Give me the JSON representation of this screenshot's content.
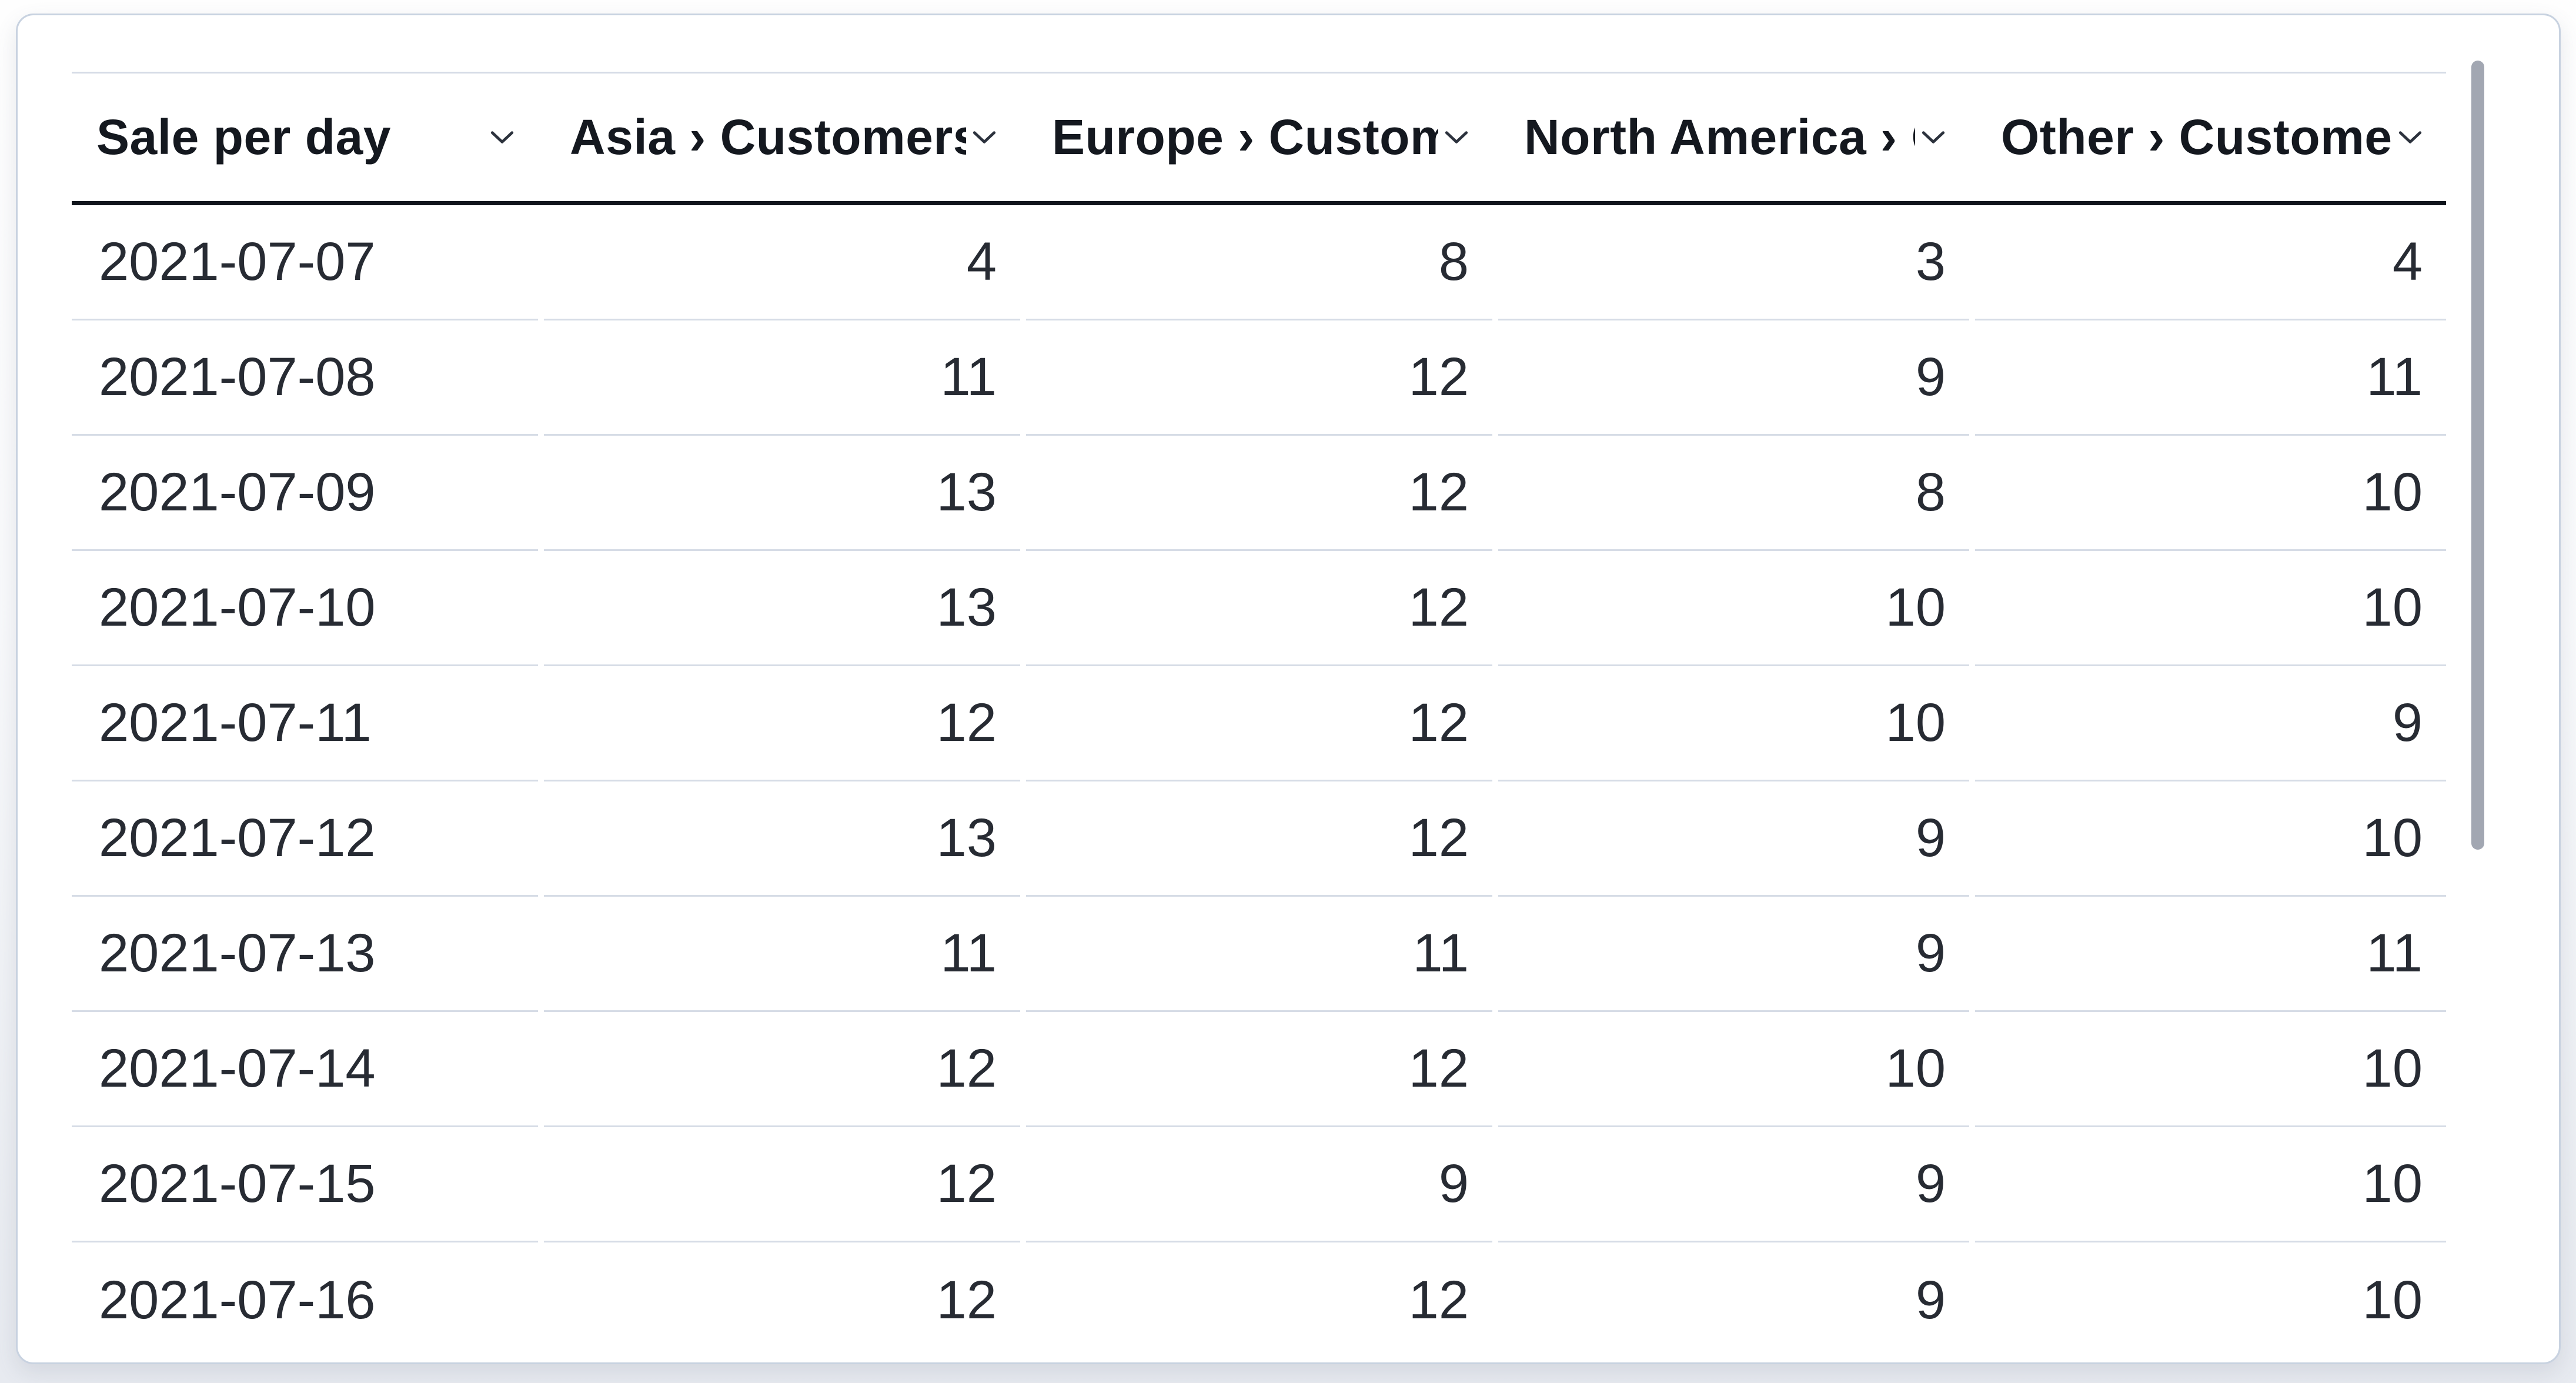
{
  "table": {
    "columns": [
      {
        "label": "Sale per day"
      },
      {
        "label": "Asia › Customers"
      },
      {
        "label": "Europe › Customers"
      },
      {
        "label": "North America › Customers"
      },
      {
        "label": "Other › Customers"
      }
    ],
    "rows": [
      {
        "date": "2021-07-07",
        "values": [
          "4",
          "8",
          "3",
          "4"
        ]
      },
      {
        "date": "2021-07-08",
        "values": [
          "11",
          "12",
          "9",
          "11"
        ]
      },
      {
        "date": "2021-07-09",
        "values": [
          "13",
          "12",
          "8",
          "10"
        ]
      },
      {
        "date": "2021-07-10",
        "values": [
          "13",
          "12",
          "10",
          "10"
        ]
      },
      {
        "date": "2021-07-11",
        "values": [
          "12",
          "12",
          "10",
          "9"
        ]
      },
      {
        "date": "2021-07-12",
        "values": [
          "13",
          "12",
          "9",
          "10"
        ]
      },
      {
        "date": "2021-07-13",
        "values": [
          "11",
          "11",
          "9",
          "11"
        ]
      },
      {
        "date": "2021-07-14",
        "values": [
          "12",
          "12",
          "10",
          "10"
        ]
      },
      {
        "date": "2021-07-15",
        "values": [
          "12",
          "9",
          "9",
          "10"
        ]
      },
      {
        "date": "2021-07-16",
        "values": [
          "12",
          "12",
          "9",
          "10"
        ]
      }
    ]
  },
  "icons": {
    "header_sort": "chevron-down-icon"
  },
  "colors": {
    "header_text": "#14181f",
    "cell_text": "#272b33",
    "row_separator": "#d6dce6",
    "header_underline": "#10141c",
    "card_border": "#c8d2e0",
    "scrollbar_thumb": "#a2a7b2"
  },
  "chart_data": {
    "type": "table",
    "title": "Sale per day",
    "categories": [
      "2021-07-07",
      "2021-07-08",
      "2021-07-09",
      "2021-07-10",
      "2021-07-11",
      "2021-07-12",
      "2021-07-13",
      "2021-07-14",
      "2021-07-15",
      "2021-07-16"
    ],
    "series": [
      {
        "name": "Asia › Customers",
        "values": [
          4,
          11,
          13,
          13,
          12,
          13,
          11,
          12,
          12,
          12
        ]
      },
      {
        "name": "Europe › Customers",
        "values": [
          8,
          12,
          12,
          12,
          12,
          12,
          11,
          12,
          9,
          12
        ]
      },
      {
        "name": "North America › Customers",
        "values": [
          3,
          9,
          8,
          10,
          10,
          9,
          9,
          10,
          9,
          9
        ]
      },
      {
        "name": "Other › Customers",
        "values": [
          4,
          11,
          10,
          10,
          9,
          10,
          11,
          10,
          10,
          10
        ]
      }
    ]
  }
}
